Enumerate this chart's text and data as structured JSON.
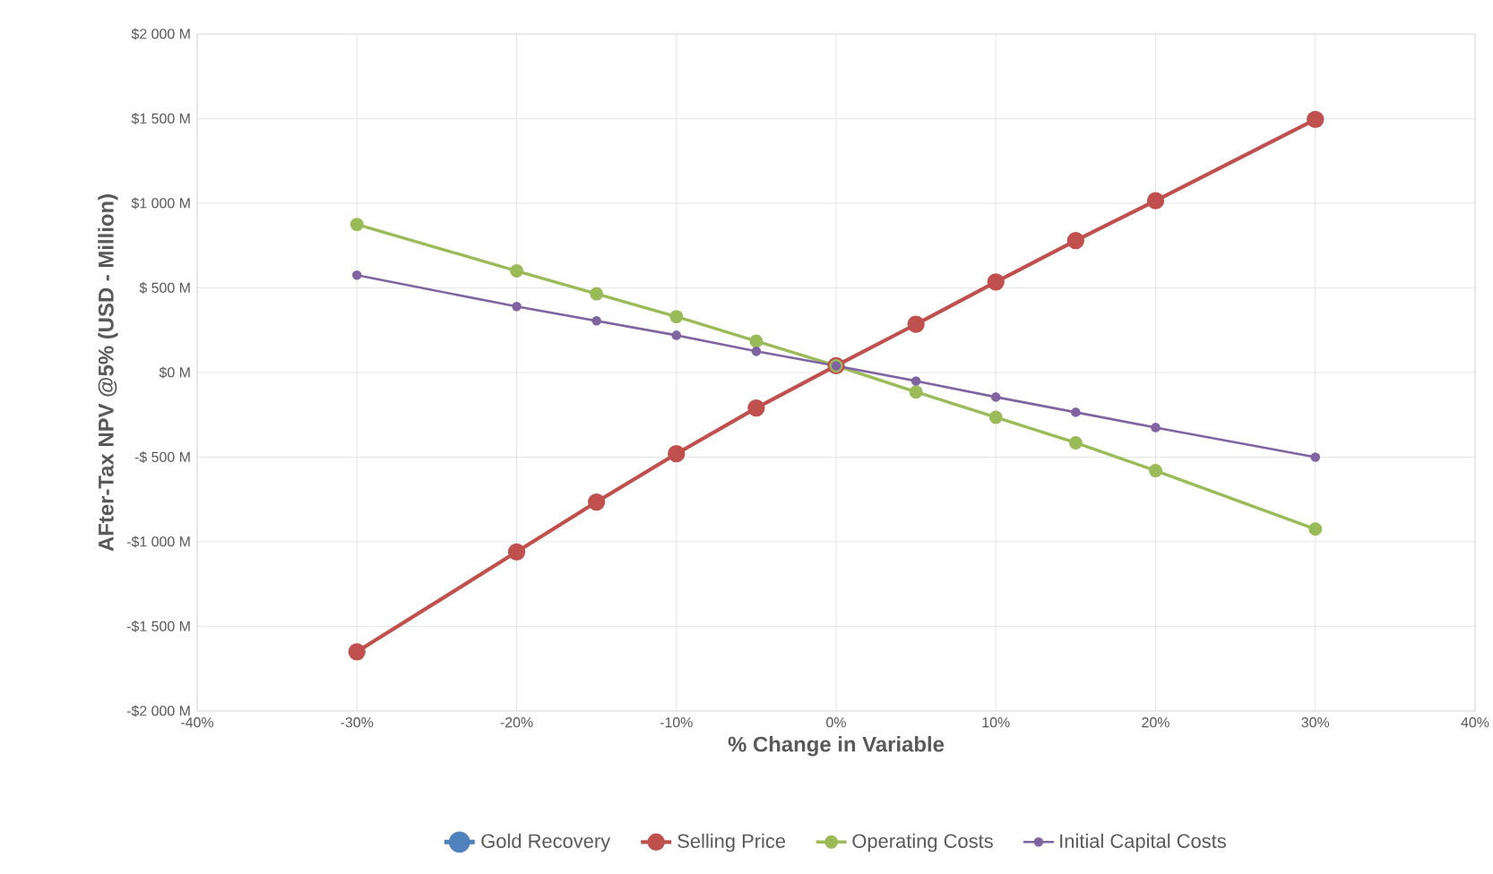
{
  "chart_data": {
    "type": "line",
    "xlabel": "% Change in Variable",
    "ylabel": "AFter-Tax NPV @5% (USD - Million)",
    "x": [
      -30,
      -20,
      -15,
      -10,
      -5,
      0,
      5,
      10,
      15,
      20,
      30
    ],
    "series": [
      {
        "name": "Gold Recovery",
        "color": "#4f81bd",
        "values": [
          null,
          null,
          null,
          null,
          null,
          null,
          null,
          null,
          null,
          null,
          null
        ]
      },
      {
        "name": "Selling Price",
        "color": "#c0504d",
        "values": [
          -1650,
          -1060,
          -765,
          -480,
          -210,
          40,
          285,
          535,
          780,
          1015,
          1495
        ]
      },
      {
        "name": "Operating Costs",
        "color": "#9bbb59",
        "values": [
          875,
          600,
          465,
          330,
          185,
          40,
          -115,
          -265,
          -415,
          -580,
          -925
        ]
      },
      {
        "name": "Initial Capital Costs",
        "color": "#8064a2",
        "values": [
          575,
          390,
          305,
          220,
          125,
          40,
          -50,
          -145,
          -235,
          -325,
          -500
        ]
      }
    ],
    "xlim": [
      -40,
      40
    ],
    "ylim": [
      -2000,
      2000
    ],
    "xticks": [
      {
        "value": -40,
        "label": "-40%"
      },
      {
        "value": -30,
        "label": "-30%"
      },
      {
        "value": -20,
        "label": "-20%"
      },
      {
        "value": -10,
        "label": "-10%"
      },
      {
        "value": 0,
        "label": "0%"
      },
      {
        "value": 10,
        "label": "10%"
      },
      {
        "value": 20,
        "label": "20%"
      },
      {
        "value": 30,
        "label": "30%"
      },
      {
        "value": 40,
        "label": "40%"
      }
    ],
    "yticks": [
      {
        "value": -2000,
        "label": "-$2 000 M"
      },
      {
        "value": -1500,
        "label": "-$1 500 M"
      },
      {
        "value": -1000,
        "label": "-$1 000 M"
      },
      {
        "value": -500,
        "label": "-$ 500 M"
      },
      {
        "value": 0,
        "label": "$0 M"
      },
      {
        "value": 500,
        "label": "$ 500 M"
      },
      {
        "value": 1000,
        "label": "$1 000 M"
      },
      {
        "value": 1500,
        "label": "$1 500 M"
      },
      {
        "value": 2000,
        "label": "$2 000 M"
      }
    ],
    "grid": true,
    "legend": "bottom",
    "marker": "circle",
    "line_style": "solid"
  }
}
